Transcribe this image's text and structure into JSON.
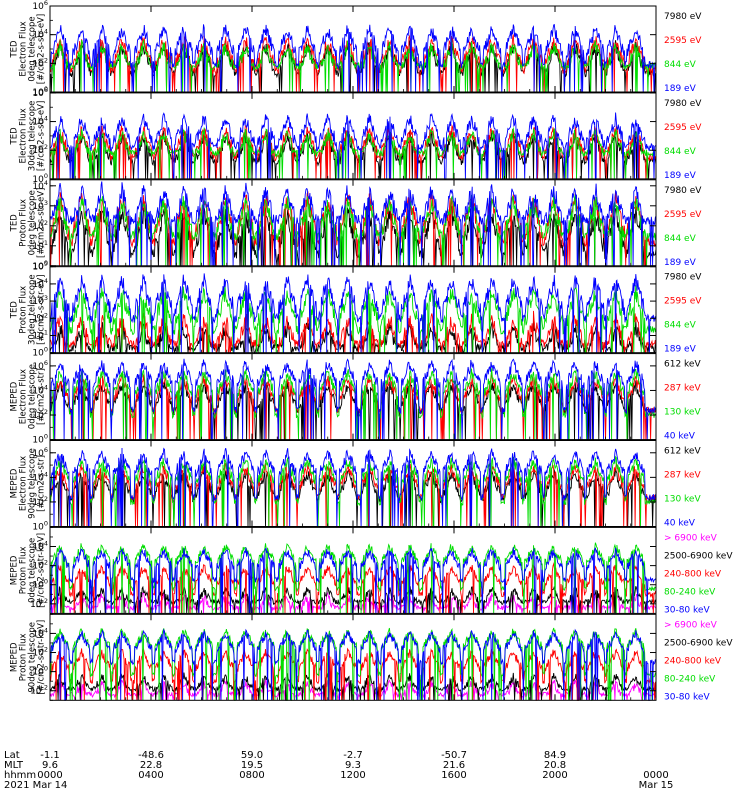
{
  "chart_data": {
    "type": "line",
    "x_axis": {
      "row_labels": [
        "Lat",
        "MLT",
        "hhmm",
        "2021"
      ],
      "ticks": [
        {
          "hour": 0,
          "lat": "-1.1",
          "mlt": "9.6",
          "hhmm": "0000",
          "date": "Mar 14"
        },
        {
          "hour": 4,
          "lat": "-48.6",
          "mlt": "22.8",
          "hhmm": "0400",
          "date": ""
        },
        {
          "hour": 8,
          "lat": "59.0",
          "mlt": "19.5",
          "hhmm": "0800",
          "date": ""
        },
        {
          "hour": 12,
          "lat": "-2.7",
          "mlt": "9.3",
          "hhmm": "1200",
          "date": ""
        },
        {
          "hour": 16,
          "lat": "-50.7",
          "mlt": "21.6",
          "hhmm": "1600",
          "date": ""
        },
        {
          "hour": 20,
          "lat": "84.9",
          "mlt": "20.8",
          "hhmm": "2000",
          "date": ""
        },
        {
          "hour": 24,
          "lat": "",
          "mlt": "",
          "hhmm": "0000",
          "date": "Mar 15"
        }
      ],
      "range_hours": [
        0,
        24
      ]
    },
    "panels": [
      {
        "ylabel": [
          "TED",
          "Electron Flux",
          "0deg telescope",
          "[#/cm2-s-str-eV]"
        ],
        "ylim_exp": [
          0,
          6
        ],
        "tick_exps": [
          0,
          2,
          4,
          6
        ],
        "series": [
          {
            "name": "7980 eV",
            "color": "#000000",
            "base": 1.3,
            "peak": 3.2
          },
          {
            "name": "2595 eV",
            "color": "#ff0000",
            "base": 1.5,
            "peak": 3.6
          },
          {
            "name": "844 eV",
            "color": "#00dd00",
            "base": 1.8,
            "peak": 3.2
          },
          {
            "name": "189 eV",
            "color": "#0000ff",
            "base": 1.9,
            "peak": 4.4
          }
        ]
      },
      {
        "ylabel": [
          "TED",
          "Electron Flux",
          "30deg telescope",
          "[#/cm2-s-str-eV]"
        ],
        "ylim_exp": [
          0,
          6
        ],
        "tick_exps": [
          0,
          2,
          4,
          6
        ],
        "series": [
          {
            "name": "7980 eV",
            "color": "#000000",
            "base": 1.2,
            "peak": 3.0
          },
          {
            "name": "2595 eV",
            "color": "#ff0000",
            "base": 1.5,
            "peak": 3.4
          },
          {
            "name": "844 eV",
            "color": "#00dd00",
            "base": 1.8,
            "peak": 3.2
          },
          {
            "name": "189 eV",
            "color": "#0000ff",
            "base": 2.2,
            "peak": 4.2
          }
        ]
      },
      {
        "ylabel": [
          "TED",
          "Proton Flux",
          "0deg telescope",
          "[#/cm2-s-str-eV]"
        ],
        "ylim_exp": [
          0,
          4.3
        ],
        "tick_exps": [
          0,
          1,
          2,
          3,
          4
        ],
        "series": [
          {
            "name": "7980 eV",
            "color": "#000000",
            "base": 0.6,
            "peak": 2.6
          },
          {
            "name": "2595 eV",
            "color": "#ff0000",
            "base": 1.2,
            "peak": 3.3
          },
          {
            "name": "844 eV",
            "color": "#00dd00",
            "base": 1.5,
            "peak": 3.2
          },
          {
            "name": "189 eV",
            "color": "#0000ff",
            "base": 2.3,
            "peak": 3.8
          }
        ]
      },
      {
        "ylabel": [
          "TED",
          "Proton Flux",
          "30deg telescope",
          "[#/cm2-s-str-eV]"
        ],
        "ylim_exp": [
          0,
          5
        ],
        "tick_exps": [
          0,
          1,
          2,
          3,
          4,
          5
        ],
        "series": [
          {
            "name": "7980 eV",
            "color": "#000000",
            "base": 0.3,
            "peak": 1.5
          },
          {
            "name": "2595 eV",
            "color": "#ff0000",
            "base": 0.5,
            "peak": 2.0
          },
          {
            "name": "844 eV",
            "color": "#00dd00",
            "base": 1.3,
            "peak": 3.5
          },
          {
            "name": "189 eV",
            "color": "#0000ff",
            "base": 2.0,
            "peak": 4.2
          }
        ]
      },
      {
        "ylabel": [
          "MEPED",
          "Electron Flux",
          "0deg telescope",
          "[#/cm2-s-str]"
        ],
        "ylim_exp": [
          0,
          7
        ],
        "tick_exps": [
          0,
          2,
          4,
          6
        ],
        "series": [
          {
            "name": "612 keV",
            "color": "#000000",
            "base": 2.3,
            "peak": 4.4
          },
          {
            "name": "287 keV",
            "color": "#ff0000",
            "base": 2.4,
            "peak": 4.9
          },
          {
            "name": "130 keV",
            "color": "#00dd00",
            "base": 2.0,
            "peak": 5.4
          },
          {
            "name": "40 keV",
            "color": "#0000ff",
            "base": 2.4,
            "peak": 6.2
          }
        ]
      },
      {
        "ylabel": [
          "MEPED",
          "Electron Flux",
          "90deg telescope",
          "[#/cm2-s-str]"
        ],
        "ylim_exp": [
          0,
          7
        ],
        "tick_exps": [
          0,
          2,
          4,
          6
        ],
        "series": [
          {
            "name": "612 keV",
            "color": "#000000",
            "base": 2.2,
            "peak": 4.3
          },
          {
            "name": "287 keV",
            "color": "#ff0000",
            "base": 2.4,
            "peak": 4.8
          },
          {
            "name": "130 keV",
            "color": "#00dd00",
            "base": 2.0,
            "peak": 5.3
          },
          {
            "name": "40 keV",
            "color": "#0000ff",
            "base": 2.4,
            "peak": 6.0
          }
        ]
      },
      {
        "ylabel": [
          "MEPED",
          "Proton Flux",
          "0deg telescope",
          "[#/cm2-s-str-keV]"
        ],
        "ylim_exp": [
          -3,
          6
        ],
        "tick_exps": [
          -2,
          0,
          2,
          4
        ],
        "series": [
          {
            "name": "> 6900 keV",
            "color": "#ff00ff",
            "base": -2.4,
            "peak": -1.2
          },
          {
            "name": "2500-6900 keV",
            "color": "#000000",
            "base": -1.8,
            "peak": -0.5
          },
          {
            "name": "240-800 keV",
            "color": "#ff0000",
            "base": -1.0,
            "peak": 1.8
          },
          {
            "name": "80-240 keV",
            "color": "#00dd00",
            "base": -0.4,
            "peak": 4.0
          },
          {
            "name": "30-80 keV",
            "color": "#0000ff",
            "base": 0.5,
            "peak": 3.5
          }
        ]
      },
      {
        "ylabel": [
          "MEPED",
          "Proton Flux",
          "90deg telescope",
          "[#/cm2-s-str-keV]"
        ],
        "ylim_exp": [
          -3,
          6
        ],
        "tick_exps": [
          -2,
          0,
          2,
          4
        ],
        "series": [
          {
            "name": "> 6900 keV",
            "color": "#ff00ff",
            "base": -2.4,
            "peak": -1.2
          },
          {
            "name": "2500-6900 keV",
            "color": "#000000",
            "base": -1.8,
            "peak": -0.5
          },
          {
            "name": "240-800 keV",
            "color": "#ff0000",
            "base": -1.0,
            "peak": 2.0
          },
          {
            "name": "80-240 keV",
            "color": "#00dd00",
            "base": -0.3,
            "peak": 4.2
          },
          {
            "name": "30-80 keV",
            "color": "#0000ff",
            "base": 1.0,
            "peak": 4.0
          }
        ]
      }
    ],
    "orbit_peaks_hours": [
      0.4,
      1.25,
      2.05,
      2.85,
      3.7,
      4.5,
      5.3,
      6.1,
      6.95,
      7.75,
      8.55,
      9.4,
      10.2,
      11.0,
      11.8,
      12.65,
      13.45,
      14.25,
      15.1,
      15.9,
      16.7,
      17.5,
      18.35,
      19.15,
      19.95,
      20.8,
      21.6,
      22.4,
      23.2
    ]
  }
}
